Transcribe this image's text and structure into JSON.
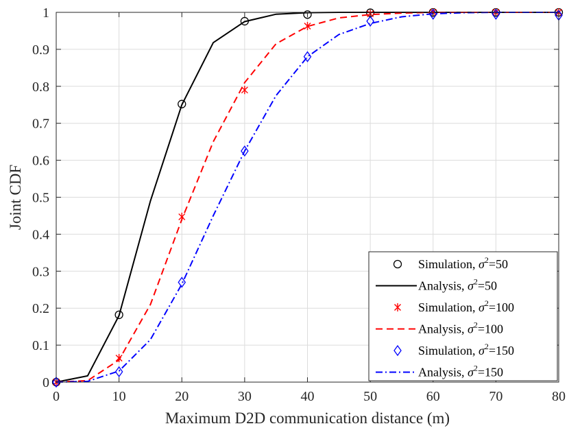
{
  "chart_data": {
    "type": "line",
    "xlabel": "Maximum D2D communication distance (m)",
    "ylabel": "Joint CDF",
    "xlim": [
      0,
      80
    ],
    "ylim": [
      0,
      1
    ],
    "x_ticks": [
      0,
      10,
      20,
      30,
      40,
      50,
      60,
      70,
      80
    ],
    "y_ticks": [
      0,
      0.1,
      0.2,
      0.3,
      0.4,
      0.5,
      0.6,
      0.7,
      0.8,
      0.9,
      1
    ],
    "y_tick_labels": [
      "0",
      "0.1",
      "0.2",
      "0.3",
      "0.4",
      "0.5",
      "0.6",
      "0.7",
      "0.8",
      "0.9",
      "1"
    ],
    "grid": true,
    "legend_position": "bottom-right",
    "series": [
      {
        "name": "Simulation, σ²=50",
        "legend_prefix": "Simulation, ",
        "sigma_value": "50",
        "kind": "marker",
        "marker": "circle",
        "color": "#000000",
        "x": [
          0,
          10,
          20,
          30,
          40,
          50,
          60,
          70,
          80
        ],
        "y": [
          0.0,
          0.182,
          0.752,
          0.976,
          0.994,
          0.999,
          1.0,
          1.0,
          1.0
        ]
      },
      {
        "name": "Analysis, σ²=50",
        "legend_prefix": "Analysis, ",
        "sigma_value": "50",
        "kind": "line",
        "dash": "solid",
        "color": "#000000",
        "x": [
          0,
          5,
          10,
          15,
          20,
          25,
          30,
          35,
          40,
          45,
          50,
          55,
          60,
          65,
          70,
          75,
          80
        ],
        "y": [
          0.0,
          0.017,
          0.18,
          0.49,
          0.75,
          0.918,
          0.975,
          0.995,
          0.999,
          1.0,
          1.0,
          1.0,
          1.0,
          1.0,
          1.0,
          1.0,
          1.0
        ]
      },
      {
        "name": "Simulation, σ²=100",
        "legend_prefix": "Simulation, ",
        "sigma_value": "100",
        "kind": "marker",
        "marker": "asterisk",
        "color": "#ff0000",
        "x": [
          0,
          10,
          20,
          30,
          40,
          50,
          60,
          70,
          80
        ],
        "y": [
          0.0,
          0.065,
          0.447,
          0.79,
          0.963,
          0.996,
          1.0,
          1.0,
          1.0
        ]
      },
      {
        "name": "Analysis, σ²=100",
        "legend_prefix": "Analysis, ",
        "sigma_value": "100",
        "kind": "line",
        "dash": "dashed",
        "color": "#ff0000",
        "x": [
          0,
          5,
          10,
          15,
          20,
          25,
          30,
          35,
          40,
          45,
          50,
          55,
          60,
          65,
          70,
          75,
          80
        ],
        "y": [
          0.0,
          0.004,
          0.06,
          0.21,
          0.44,
          0.65,
          0.81,
          0.915,
          0.962,
          0.985,
          0.994,
          0.998,
          1.0,
          1.0,
          1.0,
          1.0,
          1.0
        ]
      },
      {
        "name": "Simulation, σ²=150",
        "legend_prefix": "Simulation, ",
        "sigma_value": "150",
        "kind": "marker",
        "marker": "diamond",
        "color": "#0000ff",
        "x": [
          0,
          10,
          20,
          30,
          40,
          50,
          60,
          70,
          80
        ],
        "y": [
          0.0,
          0.028,
          0.27,
          0.625,
          0.88,
          0.976,
          0.995,
          0.995,
          0.992
        ]
      },
      {
        "name": "Analysis, σ²=150",
        "legend_prefix": "Analysis, ",
        "sigma_value": "150",
        "kind": "line",
        "dash": "dashdot",
        "color": "#0000ff",
        "x": [
          0,
          5,
          10,
          15,
          20,
          25,
          30,
          35,
          40,
          45,
          50,
          55,
          60,
          65,
          70,
          75,
          80
        ],
        "y": [
          0.0,
          0.002,
          0.03,
          0.115,
          0.265,
          0.45,
          0.625,
          0.775,
          0.88,
          0.94,
          0.97,
          0.988,
          0.996,
          0.999,
          1.0,
          1.0,
          1.0
        ]
      }
    ]
  }
}
